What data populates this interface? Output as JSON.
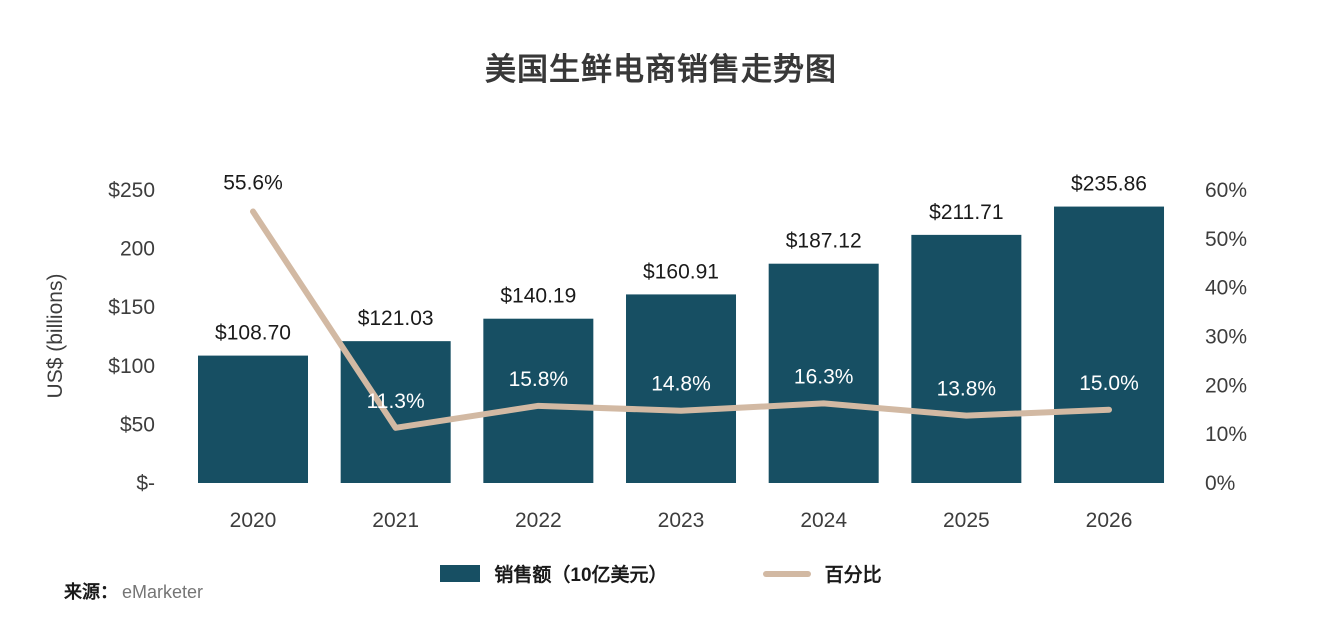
{
  "title": "美国生鲜电商销售走势图",
  "source": {
    "prefix": "来源：",
    "name": "eMarketer"
  },
  "legend": {
    "bars_label": "销售额（10亿美元）",
    "line_label": "百分比"
  },
  "colors": {
    "bar": "#174F63",
    "line": "#D2B9A3",
    "text": "#3d3d3d",
    "label_dark": "#1a1a1a",
    "label_light": "#ffffff"
  },
  "chart_data": {
    "type": "bar",
    "subtype": "bar+line combo, dual axis",
    "title": "美国生鲜电商销售走势图",
    "categories": [
      "2020",
      "2021",
      "2022",
      "2023",
      "2024",
      "2025",
      "2026"
    ],
    "series": [
      {
        "name": "销售额（10亿美元）",
        "type": "bar",
        "axis": "left",
        "values": [
          108.7,
          121.03,
          140.19,
          160.91,
          187.12,
          211.71,
          235.86
        ],
        "labels": [
          "$108.70",
          "$121.03",
          "$140.19",
          "$160.91",
          "$187.12",
          "$211.71",
          "$235.86"
        ],
        "color": "#174F63"
      },
      {
        "name": "百分比",
        "type": "line",
        "axis": "right",
        "values": [
          55.6,
          11.3,
          15.8,
          14.8,
          16.3,
          13.8,
          15.0
        ],
        "labels": [
          "55.6%",
          "11.3%",
          "15.8%",
          "14.8%",
          "16.3%",
          "13.8%",
          "15.0%"
        ],
        "color": "#D2B9A3"
      }
    ],
    "left_axis": {
      "label": "US$ (billions)",
      "min": 0,
      "max": 250,
      "ticks": [
        "$250",
        "200",
        "$150",
        "$100",
        "$50",
        "$-"
      ]
    },
    "right_axis": {
      "label": "",
      "min": 0,
      "max": 60,
      "ticks": [
        "60%",
        "50%",
        "40%",
        "30%",
        "20%",
        "10%",
        "0%"
      ]
    },
    "grid": false,
    "legend_position": "bottom-center"
  }
}
